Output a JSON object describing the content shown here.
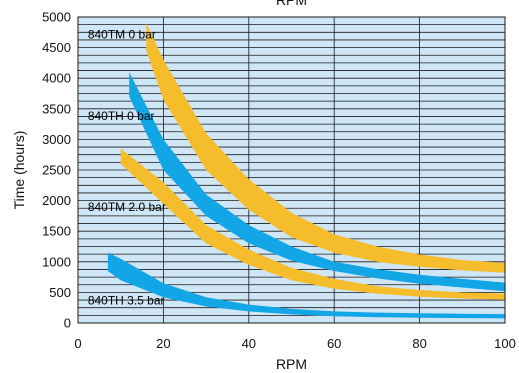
{
  "chart_data": {
    "type": "area",
    "title": "RPM",
    "xlabel": "RPM",
    "ylabel": "Time (hours)",
    "xlim": [
      0,
      100
    ],
    "ylim": [
      0,
      5000
    ],
    "x_ticks": [
      0,
      20,
      40,
      60,
      80,
      100
    ],
    "y_ticks": [
      0,
      500,
      1000,
      1500,
      2000,
      2500,
      3000,
      3500,
      4000,
      4500,
      5000
    ],
    "grid": true,
    "colors": {
      "plot_background": "#cfe6f7",
      "grid": "#1a1a1a",
      "TM": "#f5bc2c",
      "TH": "#12a6e6"
    },
    "series": [
      {
        "name": "840TM 0 bar",
        "color_key": "TM",
        "x": [
          16,
          20,
          30,
          40,
          50,
          60,
          70,
          80,
          90,
          100
        ],
        "upper": [
          4900,
          4300,
          3100,
          2350,
          1800,
          1450,
          1250,
          1120,
          1030,
          980
        ],
        "lower": [
          4450,
          3650,
          2500,
          1850,
          1400,
          1150,
          1000,
          920,
          860,
          820
        ]
      },
      {
        "name": "840TH 0 bar",
        "color_key": "TH",
        "x": [
          12,
          20,
          30,
          40,
          50,
          60,
          70,
          80,
          90,
          100
        ],
        "upper": [
          4100,
          3000,
          2100,
          1600,
          1250,
          1000,
          880,
          790,
          720,
          660
        ],
        "lower": [
          3700,
          2500,
          1750,
          1300,
          1020,
          850,
          730,
          640,
          580,
          520
        ]
      },
      {
        "name": "840TM 2.0 bar",
        "color_key": "TM",
        "x": [
          10,
          20,
          30,
          40,
          50,
          60,
          70,
          80,
          90,
          100
        ],
        "upper": [
          2850,
          2300,
          1600,
          1200,
          900,
          720,
          600,
          540,
          500,
          480
        ],
        "lower": [
          2600,
          1950,
          1300,
          950,
          700,
          560,
          480,
          430,
          400,
          380
        ]
      },
      {
        "name": "840TH 3.5 bar",
        "color_key": "TH",
        "x": [
          7,
          10,
          20,
          30,
          40,
          50,
          60,
          70,
          80,
          90,
          100
        ],
        "upper": [
          1150,
          1050,
          650,
          420,
          300,
          230,
          190,
          170,
          160,
          150,
          145
        ],
        "lower": [
          850,
          700,
          420,
          270,
          190,
          140,
          110,
          95,
          85,
          80,
          75
        ]
      }
    ],
    "annotations": [
      {
        "text": "840TM 0 bar",
        "x": 2.3,
        "y": 4650
      },
      {
        "text": "840TH 0 bar",
        "x": 2.3,
        "y": 3320
      },
      {
        "text": "840TM 2.0 bar",
        "x": 2.3,
        "y": 1830
      },
      {
        "text": "840TH 3.5 bar",
        "x": 2.3,
        "y": 300
      }
    ]
  }
}
